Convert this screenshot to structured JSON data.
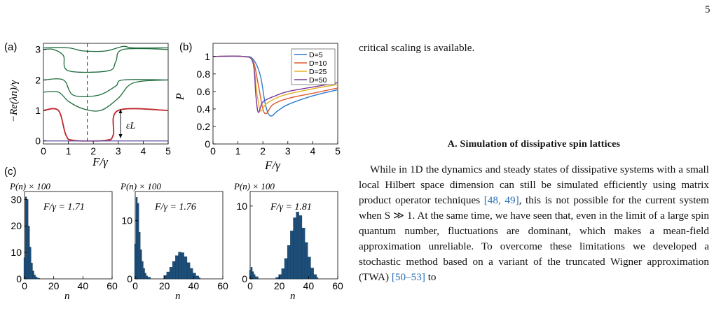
{
  "page_number": "5",
  "right_text": {
    "intro_line": "critical scaling is available.",
    "section_heading": "A.   Simulation of dissipative spin lattices",
    "para_part1": "While in 1D the dynamics and steady states of dissipative systems with a small local Hilbert space dimension can still be simulated efficiently using matrix product operator techniques ",
    "cite1": "[48, 49]",
    "para_part2": ", this is not possible for the current system when S ≫ 1. At the same time, we have seen that, even in the limit of a large spin quantum number, fluctuations are dominant, which makes a mean-field approximation unreliable. To overcome these limitations we developed a stochastic method based on a variant of the truncated Wigner approximation (TWA) ",
    "cite2": "[50–53]",
    "para_part3": " to"
  },
  "figure": {
    "panel_labels": [
      "(a)",
      "(b)",
      "(c)"
    ],
    "colors": {
      "red": "#c0262d",
      "green": "#1b6b3a",
      "blue": "#2e7bcf",
      "orange": "#e0582a",
      "yellow": "#e8b020",
      "purple": "#7a3a9a",
      "hist": "#1d4f7a"
    },
    "chart_data": [
      {
        "panel": "(a)",
        "type": "line",
        "xlabel": "F/γ",
        "ylabel": "−Re(λn)/γ",
        "xlim": [
          0,
          5
        ],
        "ylim": [
          -0.1,
          3.2
        ],
        "xticks": [
          "0",
          "1",
          "2",
          "3",
          "4",
          "5"
        ],
        "yticks": [
          "0",
          "1",
          "2",
          "3"
        ],
        "annotation": "εL",
        "dashed_line_x": 1.76,
        "series": [
          {
            "name": "",
            "x": [
              0,
              0.6,
              0.9,
              1.2,
              2.5,
              2.8,
              3.0,
              5
            ],
            "y": [
              1,
              1,
              0.2,
              0.02,
              0.02,
              0.2,
              1,
              1
            ]
          },
          {
            "name": "",
            "x": [
              0,
              5
            ],
            "y": [
              0,
              0
            ]
          },
          {
            "name": "",
            "x": [
              0,
              0.8,
              1.2,
              2.2,
              2.9,
              3.2,
              5
            ],
            "y": [
              2,
              2,
              1.5,
              1.5,
              1.8,
              2,
              2
            ]
          },
          {
            "name": "",
            "x": [
              0,
              0.6,
              1.0,
              1.6,
              2.3,
              3.0,
              3.6,
              5
            ],
            "y": [
              1.6,
              1.6,
              1.3,
              1.05,
              1.0,
              1.4,
              1.9,
              2.0
            ]
          },
          {
            "name": "",
            "x": [
              0,
              0.4,
              0.8,
              1.0,
              2.6,
              2.9,
              3.2,
              5
            ],
            "y": [
              3,
              3,
              2.8,
              2.3,
              2.3,
              2.6,
              3,
              3
            ]
          },
          {
            "name": "",
            "x": [
              0,
              1.0,
              1.6,
              2.5,
              3.2,
              3.6,
              5
            ],
            "y": [
              3.05,
              3.05,
              2.95,
              2.95,
              3.1,
              3.05,
              3.05
            ]
          }
        ]
      },
      {
        "panel": "(b)",
        "type": "line",
        "xlabel": "F/γ",
        "ylabel": "P",
        "xlim": [
          0,
          5
        ],
        "ylim": [
          0,
          1.15
        ],
        "xticks": [
          "0",
          "1",
          "2",
          "3",
          "4",
          "5"
        ],
        "yticks": [
          "0",
          "0.2",
          "0.4",
          "0.6",
          "0.8",
          "1"
        ],
        "legend_position": "top-right",
        "series": [
          {
            "name": "D=5",
            "x": [
              0,
              1.2,
              1.6,
              1.9,
              2.1,
              2.3,
              2.6,
              3.0,
              4.0,
              5.0
            ],
            "y": [
              1,
              1,
              0.97,
              0.78,
              0.45,
              0.32,
              0.38,
              0.45,
              0.55,
              0.62
            ]
          },
          {
            "name": "D=10",
            "x": [
              0,
              1.2,
              1.6,
              1.8,
              2.0,
              2.15,
              2.4,
              3.0,
              4.0,
              5.0
            ],
            "y": [
              1,
              1,
              0.95,
              0.7,
              0.4,
              0.35,
              0.45,
              0.52,
              0.58,
              0.64
            ]
          },
          {
            "name": "D=25",
            "x": [
              0,
              1.2,
              1.6,
              1.75,
              1.9,
              2.1,
              2.5,
              3.0,
              4.0,
              5.0
            ],
            "y": [
              1,
              1,
              0.94,
              0.6,
              0.38,
              0.45,
              0.52,
              0.57,
              0.63,
              0.68
            ]
          },
          {
            "name": "D=50",
            "x": [
              0,
              1.2,
              1.6,
              1.72,
              1.82,
              2.0,
              2.5,
              3.0,
              4.0,
              5.0
            ],
            "y": [
              1,
              1,
              0.93,
              0.55,
              0.36,
              0.48,
              0.55,
              0.6,
              0.65,
              0.7
            ]
          }
        ]
      },
      {
        "panel": "(c-1)",
        "type": "bar",
        "ylabel": "P(n) × 100",
        "xlabel": "n",
        "annotation": "F/γ = 1.71",
        "xlim": [
          0,
          60
        ],
        "ylim": [
          0,
          33
        ],
        "xticks": [
          "0",
          "20",
          "40",
          "60"
        ],
        "yticks": [
          "0",
          "10",
          "20",
          "30"
        ],
        "x": [
          0,
          1,
          2,
          3,
          4,
          5,
          6,
          7,
          8,
          9,
          10
        ],
        "values": [
          8,
          31,
          30,
          20,
          12,
          6,
          3,
          1.5,
          0.8,
          0.4,
          0.2
        ]
      },
      {
        "panel": "(c-2)",
        "type": "bar",
        "ylabel": "P(n) × 100",
        "xlabel": "n",
        "annotation": "F/γ = 1.76",
        "xlim": [
          0,
          60
        ],
        "ylim": [
          0,
          15
        ],
        "xticks": [
          "0",
          "20",
          "40",
          "60"
        ],
        "yticks": [
          "0",
          "10"
        ],
        "x": [
          0,
          1,
          2,
          3,
          4,
          5,
          6,
          7,
          8,
          9,
          20,
          22,
          24,
          26,
          28,
          30,
          32,
          34,
          36,
          38,
          40,
          42,
          44
        ],
        "values": [
          6,
          14,
          13,
          8,
          5,
          3,
          1.8,
          1,
          0.5,
          0.3,
          0.6,
          1.2,
          2.0,
          3.0,
          4.0,
          4.6,
          4.5,
          3.8,
          2.8,
          1.8,
          1.0,
          0.5,
          0.2
        ]
      },
      {
        "panel": "(c-3)",
        "type": "bar",
        "ylabel": "P(n) × 100",
        "xlabel": "n",
        "annotation": "F/γ = 1.81",
        "xlim": [
          0,
          60
        ],
        "ylim": [
          0,
          12
        ],
        "xticks": [
          "0",
          "20",
          "40",
          "60"
        ],
        "yticks": [
          "0",
          "10"
        ],
        "x": [
          0,
          1,
          2,
          3,
          4,
          18,
          20,
          22,
          24,
          26,
          28,
          30,
          32,
          34,
          36,
          38,
          40,
          42,
          44,
          46
        ],
        "values": [
          1.2,
          1.6,
          1.0,
          0.6,
          0.3,
          0.2,
          0.6,
          1.4,
          2.8,
          4.6,
          6.6,
          8.4,
          9.2,
          8.7,
          7.0,
          5.0,
          3.0,
          1.5,
          0.6,
          0.2
        ]
      }
    ]
  }
}
